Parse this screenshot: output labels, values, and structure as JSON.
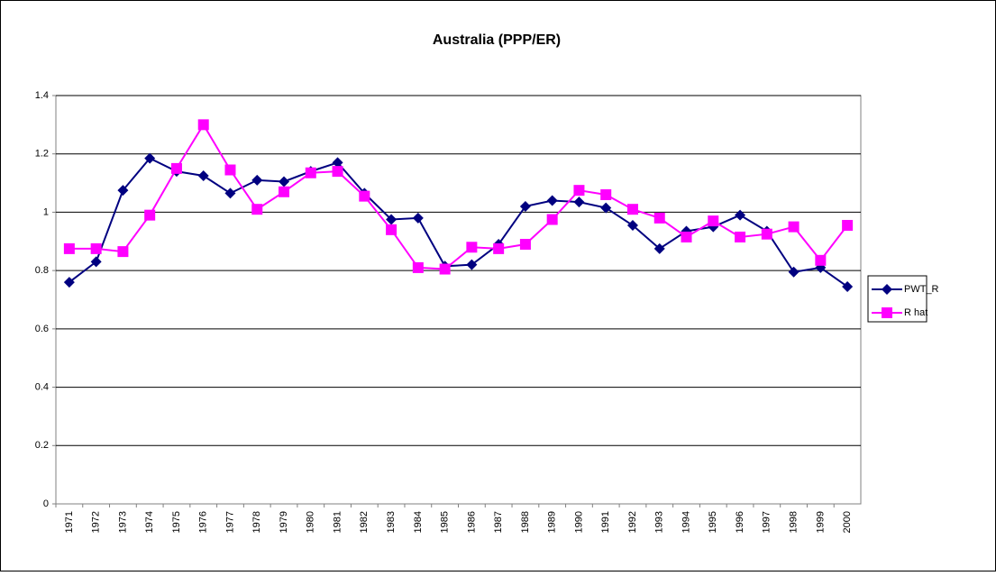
{
  "chart_data": {
    "type": "line",
    "title": "Australia (PPP/ER)",
    "categories": [
      "1971",
      "1972",
      "1973",
      "1974",
      "1975",
      "1976",
      "1977",
      "1978",
      "1979",
      "1980",
      "1981",
      "1982",
      "1983",
      "1984",
      "1985",
      "1986",
      "1987",
      "1988",
      "1989",
      "1990",
      "1991",
      "1992",
      "1993",
      "1994",
      "1995",
      "1996",
      "1997",
      "1998",
      "1999",
      "2000"
    ],
    "series": [
      {
        "name": "PWT_R",
        "color": "#000080",
        "marker": "diamond",
        "values": [
          0.76,
          0.83,
          1.075,
          1.185,
          1.14,
          1.125,
          1.065,
          1.11,
          1.105,
          1.14,
          1.17,
          1.065,
          0.975,
          0.98,
          0.815,
          0.82,
          0.89,
          1.02,
          1.04,
          1.035,
          1.015,
          0.955,
          0.875,
          0.935,
          0.95,
          0.99,
          0.935,
          0.795,
          0.81,
          0.745
        ]
      },
      {
        "name": "R hat",
        "color": "#ff00ff",
        "marker": "square",
        "values": [
          0.875,
          0.875,
          0.865,
          0.99,
          1.15,
          1.3,
          1.145,
          1.01,
          1.07,
          1.135,
          1.14,
          1.055,
          0.94,
          0.81,
          0.805,
          0.88,
          0.875,
          0.89,
          0.975,
          1.075,
          1.06,
          1.01,
          0.98,
          0.915,
          0.97,
          0.915,
          0.925,
          0.95,
          0.835,
          0.955
        ]
      }
    ],
    "ylim": [
      0,
      1.4
    ],
    "yticks": [
      0,
      0.2,
      0.4,
      0.6,
      0.8,
      1,
      1.2,
      1.4
    ],
    "grid": true,
    "legend": "right"
  }
}
